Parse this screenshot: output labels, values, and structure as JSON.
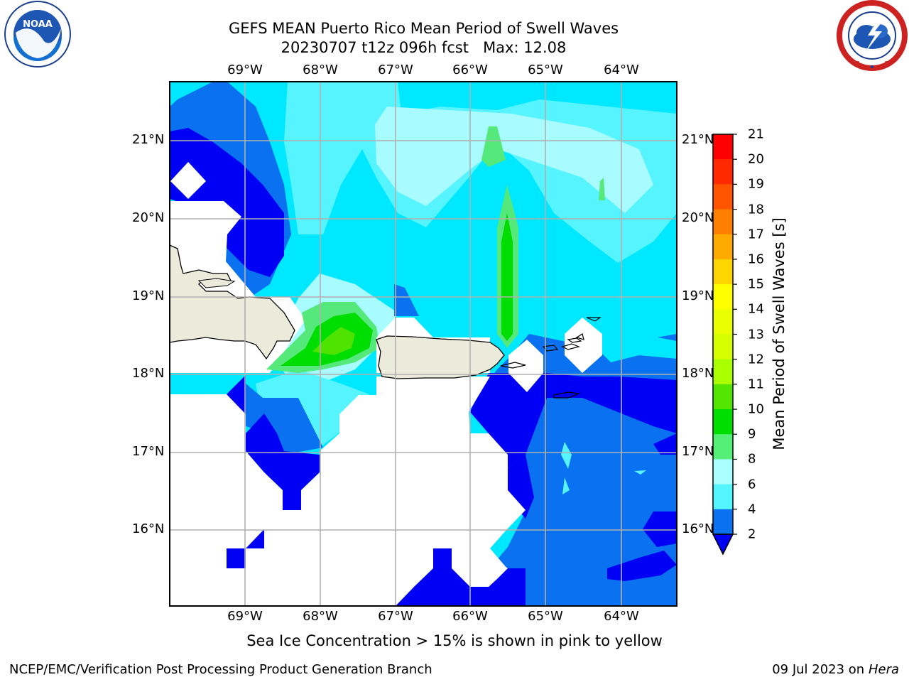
{
  "header": {
    "title_line1": "GEFS MEAN Puerto Rico Mean Period of Swell Waves",
    "title_line2": "20230707 t12z 096h fcst   Max: 12.08"
  },
  "logos": {
    "left": {
      "text": "NOAA",
      "icon": "noaa-logo-icon"
    },
    "right": {
      "icon": "national-weather-service-logo-icon"
    }
  },
  "map": {
    "lon_labels_top": [
      "69°W",
      "68°W",
      "67°W",
      "66°W",
      "65°W",
      "64°W"
    ],
    "lon_labels_bottom": [
      "69°W",
      "68°W",
      "67°W",
      "66°W",
      "65°W",
      "64°W"
    ],
    "lat_labels_left": [
      "21°N",
      "20°N",
      "19°N",
      "18°N",
      "17°N",
      "16°N"
    ],
    "lat_labels_right": [
      "21°N",
      "20°N",
      "19°N",
      "18°N",
      "17°N",
      "16°N"
    ],
    "colors": {
      "ocean_2_4": "#0a72f0",
      "ocean_below_2": "#0000f5",
      "ocean_4_6": "#00e8ff",
      "ocean_6_8": "#55f4ff",
      "ocean_8_9": "#a8fbff",
      "level_9_10": "#55e87a",
      "level_10_11": "#00dd00",
      "level_11_12": "#4ee300",
      "land": "#ebebdc",
      "grid": "#b0b0b0"
    }
  },
  "colorbar": {
    "label": "Mean Period of Swell Waves [s]",
    "ticks": [
      "21",
      "20",
      "19",
      "18",
      "17",
      "16",
      "15",
      "14",
      "13",
      "12",
      "11",
      "10",
      "9",
      "8",
      "6",
      "4",
      "2"
    ],
    "colors": [
      "#ff0000",
      "#ff2a00",
      "#ff5500",
      "#ff7f00",
      "#ffaa00",
      "#ffd500",
      "#ffff00",
      "#eaff00",
      "#d5ff00",
      "#aaff00",
      "#55e600",
      "#00dd00",
      "#55ee77",
      "#aaffff",
      "#55f5ff",
      "#00e5ff",
      "#0a72f0"
    ],
    "extend_color": "#0000f5"
  },
  "footer": {
    "note": "Sea Ice Concentration > 15% is shown in pink to yellow",
    "credit_left": "NCEP/EMC/Verification Post Processing Product Generation Branch",
    "credit_right_prefix": "09 Jul 2023 on ",
    "credit_right_host": "Hera"
  }
}
